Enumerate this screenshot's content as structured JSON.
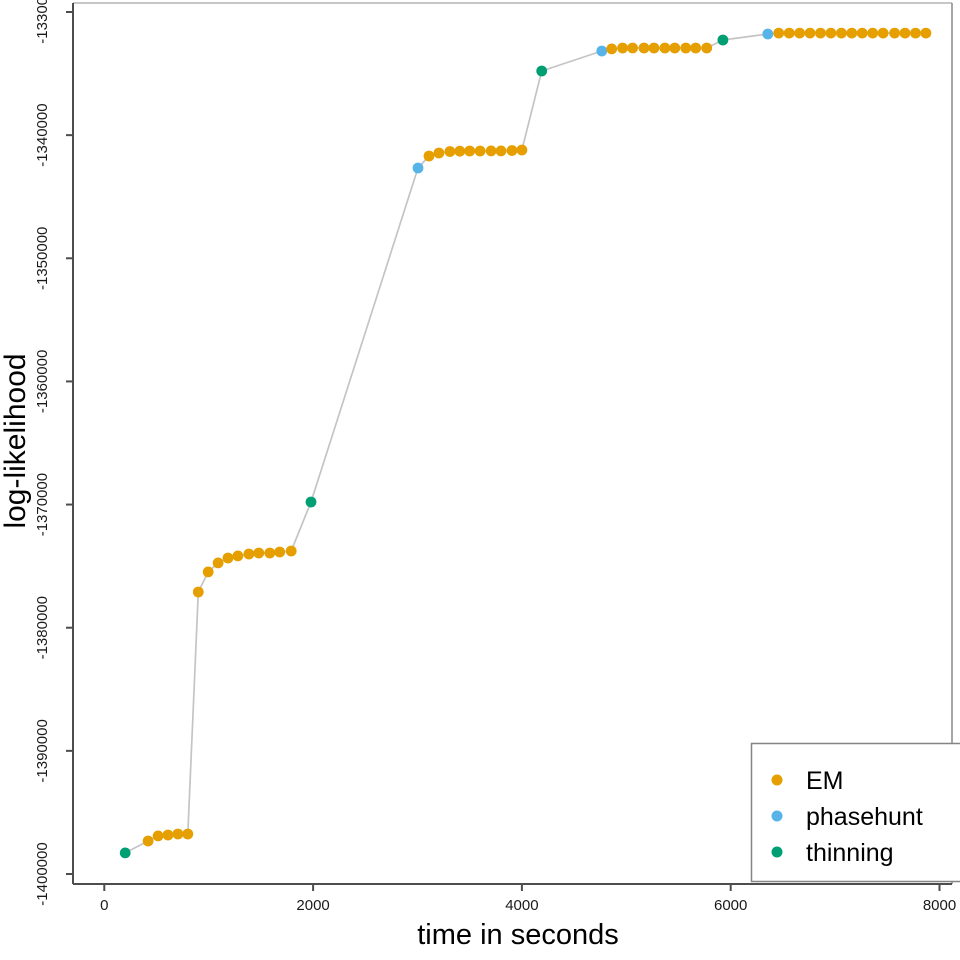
{
  "chart_data": {
    "type": "scatter",
    "title": "",
    "xlabel": "time in seconds",
    "ylabel": "log-likelihood",
    "xlim": [
      0,
      8000
    ],
    "ylim": [
      -1400000,
      -1330000
    ],
    "x_ticks": [
      0,
      2000,
      4000,
      6000,
      8000
    ],
    "x_tick_labels": [
      "0",
      "2000",
      "4000",
      "6000",
      "8000"
    ],
    "y_ticks": [
      -1330000,
      -1340000,
      -1350000,
      -1360000,
      -1370000,
      -1380000,
      -1390000,
      -1400000
    ],
    "y_tick_labels": [
      "-1330000",
      "-1340000",
      "-1350000",
      "-1360000",
      "-1370000",
      "-1380000",
      "-1390000",
      "-1400000"
    ],
    "grid": false,
    "line_color": "#c4c4c4",
    "legend": {
      "position": "bottom-right",
      "entries": [
        "EM",
        "phasehunt",
        "thinning"
      ]
    },
    "series": [
      {
        "name": "EM",
        "color": "#E69F00",
        "points": [
          [
            420,
            -1397320
          ],
          [
            515,
            -1396910
          ],
          [
            610,
            -1396830
          ],
          [
            705,
            -1396750
          ],
          [
            800,
            -1396750
          ],
          [
            900,
            -1377100
          ],
          [
            995,
            -1375470
          ],
          [
            1090,
            -1374740
          ],
          [
            1185,
            -1374340
          ],
          [
            1280,
            -1374170
          ],
          [
            1385,
            -1374010
          ],
          [
            1480,
            -1373930
          ],
          [
            1585,
            -1373930
          ],
          [
            1680,
            -1373850
          ],
          [
            1790,
            -1373770
          ],
          [
            3110,
            -1341690
          ],
          [
            3205,
            -1341450
          ],
          [
            3310,
            -1341330
          ],
          [
            3405,
            -1341300
          ],
          [
            3500,
            -1341290
          ],
          [
            3600,
            -1341290
          ],
          [
            3705,
            -1341280
          ],
          [
            3800,
            -1341280
          ],
          [
            3905,
            -1341250
          ],
          [
            4000,
            -1341210
          ],
          [
            4860,
            -1333000
          ],
          [
            4965,
            -1332920
          ],
          [
            5060,
            -1332920
          ],
          [
            5170,
            -1332920
          ],
          [
            5265,
            -1332920
          ],
          [
            5370,
            -1332920
          ],
          [
            5465,
            -1332920
          ],
          [
            5570,
            -1332920
          ],
          [
            5665,
            -1332920
          ],
          [
            5770,
            -1332920
          ],
          [
            6460,
            -1331710
          ],
          [
            6560,
            -1331710
          ],
          [
            6660,
            -1331710
          ],
          [
            6760,
            -1331710
          ],
          [
            6860,
            -1331710
          ],
          [
            6960,
            -1331710
          ],
          [
            7060,
            -1331710
          ],
          [
            7160,
            -1331710
          ],
          [
            7260,
            -1331710
          ],
          [
            7360,
            -1331710
          ],
          [
            7460,
            -1331710
          ],
          [
            7570,
            -1331710
          ],
          [
            7670,
            -1331710
          ],
          [
            7770,
            -1331710
          ],
          [
            7870,
            -1331710
          ]
        ]
      },
      {
        "name": "phasehunt",
        "color": "#56B4E9",
        "points": [
          [
            3005,
            -1342670
          ],
          [
            4765,
            -1333170
          ],
          [
            6355,
            -1331790
          ]
        ]
      },
      {
        "name": "thinning",
        "color": "#009E73",
        "points": [
          [
            200,
            -1398290
          ],
          [
            1980,
            -1369790
          ],
          [
            4190,
            -1334790
          ],
          [
            5925,
            -1332270
          ]
        ]
      }
    ]
  }
}
